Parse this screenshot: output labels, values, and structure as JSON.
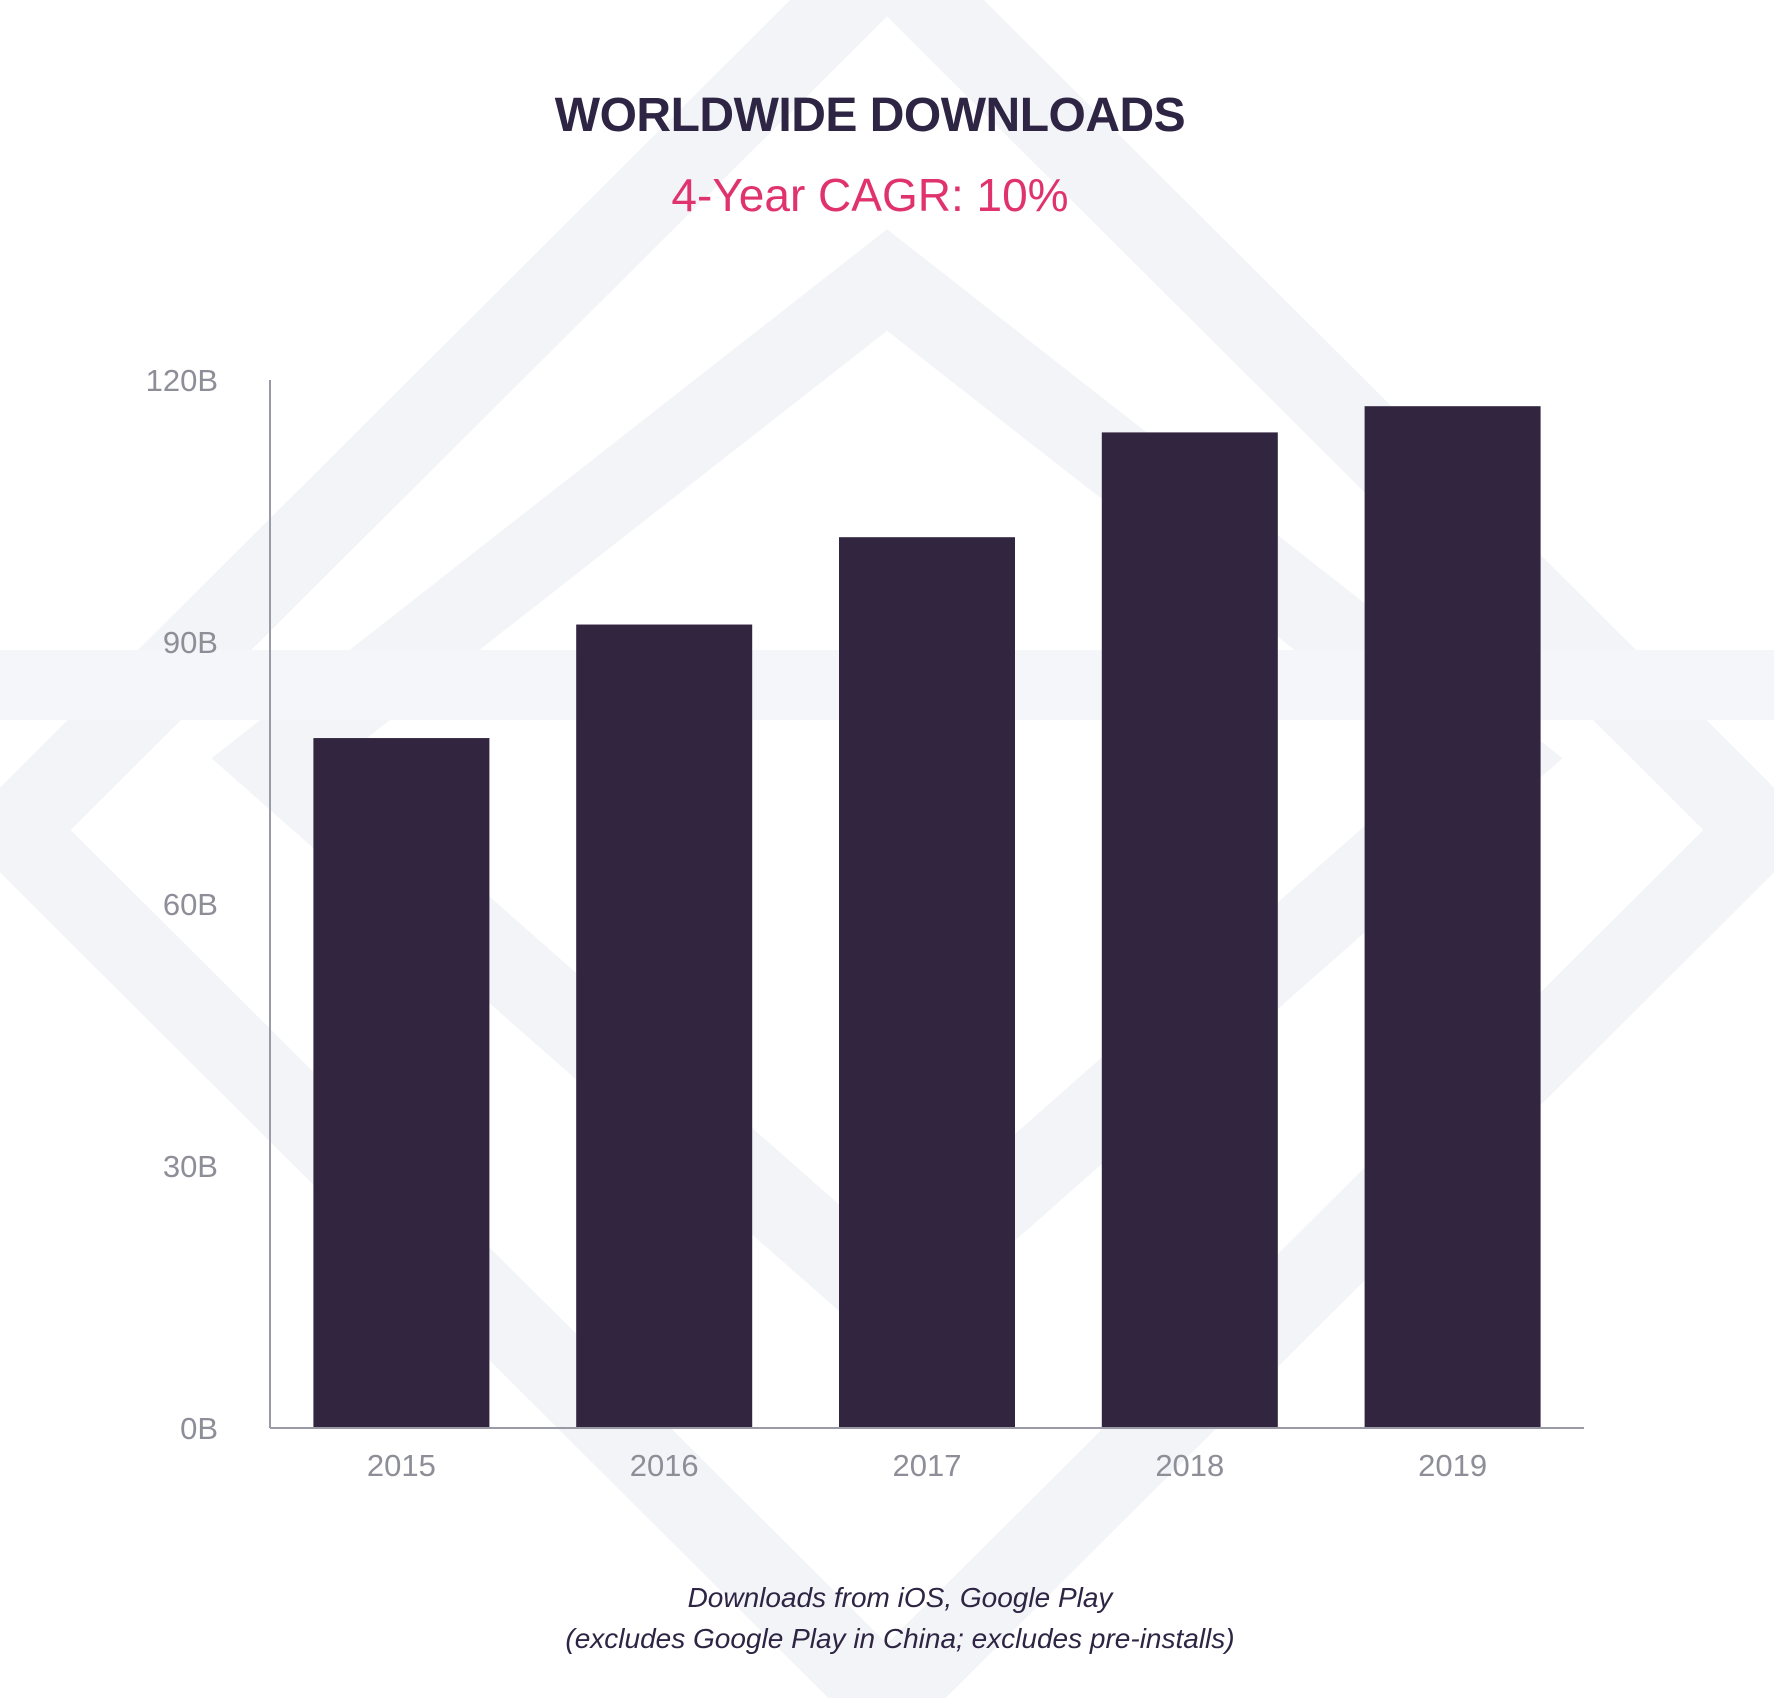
{
  "chart_data": {
    "type": "bar",
    "title": "WORLDWIDE DOWNLOADS",
    "subtitle": "4-Year CAGR: 10%",
    "categories": [
      "2015",
      "2016",
      "2017",
      "2018",
      "2019"
    ],
    "values": [
      79,
      92,
      102,
      114,
      117
    ],
    "ylim": [
      0,
      120
    ],
    "yticks": [
      0,
      30,
      60,
      90,
      120
    ],
    "ytick_labels": [
      "0B",
      "30B",
      "60B",
      "90B",
      "120B"
    ],
    "xlabel": "",
    "ylabel": "",
    "grid": false,
    "legend": "none",
    "bar_color": "#31253f",
    "footnotes": [
      "Downloads from iOS, Google Play",
      "(excludes Google Play in China; excludes pre-installs)"
    ]
  },
  "colors": {
    "title": "#2e2443",
    "subtitle": "#e0336e",
    "axis": "#9a9aa6",
    "tick_text": "#8e8e98",
    "background_pattern": "#f4f5f8"
  }
}
